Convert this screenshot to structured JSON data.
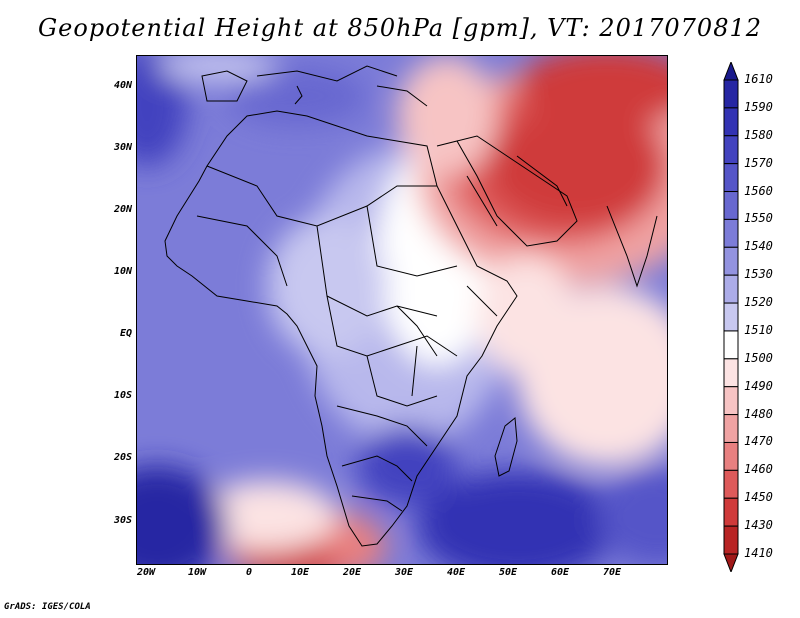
{
  "title": "Geopotential Height at 850hPa [gpm], VT: 2017070812",
  "credit": "GrADS: IGES/COLA",
  "lat_ticks": [
    "40N",
    "30N",
    "20N",
    "10N",
    "EQ",
    "10S",
    "20S",
    "30S"
  ],
  "lon_ticks": [
    "20W",
    "10W",
    "0",
    "10E",
    "20E",
    "30E",
    "40E",
    "50E",
    "60E",
    "70E"
  ],
  "colorbar": {
    "labels": [
      "1610",
      "1590",
      "1580",
      "1570",
      "1560",
      "1550",
      "1540",
      "1530",
      "1520",
      "1510",
      "1500",
      "1490",
      "1480",
      "1470",
      "1460",
      "1450",
      "1430",
      "1410"
    ],
    "colors": [
      "#1a1a8c",
      "#2626a3",
      "#3333b3",
      "#4343bf",
      "#5555c8",
      "#6868d0",
      "#7c7cd8",
      "#9393e0",
      "#acace8",
      "#c8c8f0",
      "#ffffff",
      "#fce3e3",
      "#f7c4c4",
      "#f0a3a3",
      "#e88080",
      "#de5a5a",
      "#cf3a3a",
      "#b82424",
      "#a01818"
    ]
  }
}
